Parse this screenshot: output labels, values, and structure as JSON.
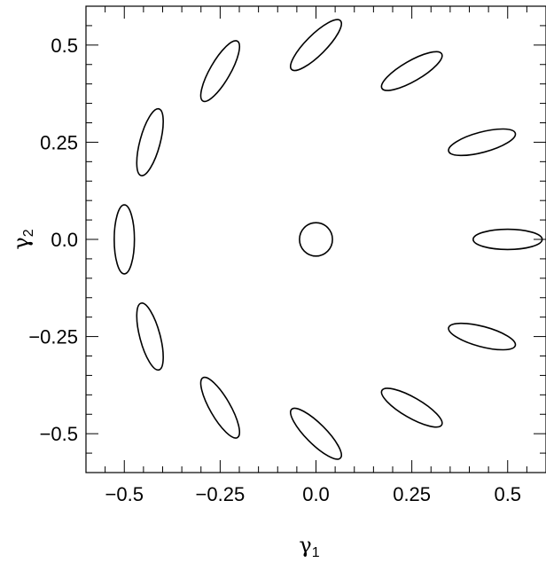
{
  "chart_data": {
    "type": "scatter",
    "title": "",
    "xlabel": {
      "symbol": "γ",
      "sub": "1"
    },
    "ylabel": {
      "symbol": "γ",
      "sub": "2"
    },
    "xlim": [
      -0.6,
      0.6
    ],
    "ylim": [
      -0.6,
      0.6
    ],
    "xticks": [
      {
        "value": -0.5,
        "label": "−0.5"
      },
      {
        "value": -0.25,
        "label": "−0.25"
      },
      {
        "value": 0,
        "label": "0.0"
      },
      {
        "value": 0.25,
        "label": "0.25"
      },
      {
        "value": 0.5,
        "label": "0.5"
      }
    ],
    "yticks": [
      {
        "value": 0.5,
        "label": "0.5"
      },
      {
        "value": 0.25,
        "label": "0.25"
      },
      {
        "value": 0,
        "label": "0.0"
      },
      {
        "value": -0.25,
        "label": "−0.25"
      },
      {
        "value": -0.5,
        "label": "−0.5"
      }
    ],
    "minor_tick_step": 0.05,
    "grid": false,
    "marker": "ellipse",
    "points": [
      {
        "g1": 0.0,
        "g2": 0.0,
        "a": 0.043,
        "b": 0.043,
        "angle": 0
      },
      {
        "g1": 0.5,
        "g2": 0.0,
        "a": 0.09,
        "b": 0.026,
        "angle": 0
      },
      {
        "g1": 0.433,
        "g2": 0.25,
        "a": 0.09,
        "b": 0.026,
        "angle": 15
      },
      {
        "g1": 0.25,
        "g2": 0.433,
        "a": 0.09,
        "b": 0.026,
        "angle": 30
      },
      {
        "g1": 0.0,
        "g2": 0.5,
        "a": 0.09,
        "b": 0.026,
        "angle": 45
      },
      {
        "g1": -0.25,
        "g2": 0.433,
        "a": 0.09,
        "b": 0.026,
        "angle": 60
      },
      {
        "g1": -0.433,
        "g2": 0.25,
        "a": 0.09,
        "b": 0.026,
        "angle": 75
      },
      {
        "g1": -0.5,
        "g2": 0.0,
        "a": 0.09,
        "b": 0.026,
        "angle": 90
      },
      {
        "g1": -0.433,
        "g2": -0.25,
        "a": 0.09,
        "b": 0.026,
        "angle": 105
      },
      {
        "g1": -0.25,
        "g2": -0.433,
        "a": 0.09,
        "b": 0.026,
        "angle": 120
      },
      {
        "g1": 0.0,
        "g2": -0.5,
        "a": 0.09,
        "b": 0.026,
        "angle": 135
      },
      {
        "g1": 0.25,
        "g2": -0.433,
        "a": 0.09,
        "b": 0.026,
        "angle": 150
      },
      {
        "g1": 0.433,
        "g2": -0.25,
        "a": 0.09,
        "b": 0.026,
        "angle": 165
      }
    ]
  }
}
